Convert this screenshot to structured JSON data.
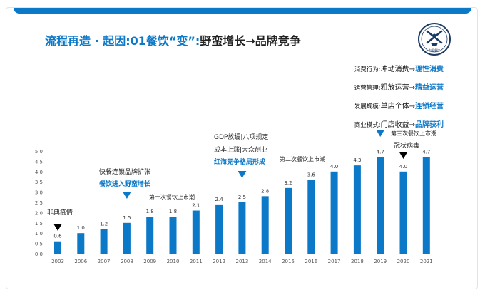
{
  "header": {
    "title_blue": "流程再造 · 起因:01餐饮“变”:",
    "title_dark": "野蛮增长→品牌竞争",
    "logo_text": "中国餐饮"
  },
  "legend": [
    {
      "label": "消费行为:",
      "from": "冲动消费",
      "arrow": "→",
      "to": "理性消费"
    },
    {
      "label": "运营管理:",
      "from": "粗放运营",
      "arrow": "→",
      "to": "精益运营"
    },
    {
      "label": "发展规模:",
      "from": "单店个体",
      "arrow": "→",
      "to": "连锁经营"
    },
    {
      "label": "商业模式:",
      "from": "门店收益",
      "arrow": "→",
      "to": "品牌获利"
    }
  ],
  "chart_data": {
    "type": "bar",
    "categories": [
      "2003",
      "2006",
      "2007",
      "2008",
      "2009",
      "2010",
      "2011",
      "2012",
      "2013",
      "2014",
      "2015",
      "2016",
      "2017",
      "2018",
      "2019",
      "2020",
      "2021"
    ],
    "values": [
      0.6,
      1.0,
      1.2,
      1.5,
      1.8,
      1.8,
      2.1,
      2.4,
      2.5,
      2.8,
      3.2,
      3.6,
      4.0,
      4.3,
      4.7,
      4.0,
      4.7
    ],
    "value_labels": [
      "0.6",
      "1.0",
      "1.2",
      "1.5",
      "1.8",
      "1.8",
      "2.1",
      "2.4",
      "2.5",
      "2.8",
      "3.2",
      "3.6",
      "4.0",
      "4.3",
      "4.7",
      "4.0",
      "4.7"
    ],
    "ylim": [
      0,
      5.0
    ],
    "yticks": [
      "0.0",
      "0.5",
      "1.0",
      "1.5",
      "2.0",
      "2.5",
      "3.0",
      "3.5",
      "4.0",
      "4.5",
      "5.0"
    ],
    "grid": false,
    "bar_color": "#0b78c8",
    "annotations": [
      {
        "lines": [
          "非典疫情"
        ],
        "marker": "black-down-triangle",
        "at": "2003"
      },
      {
        "lines": [
          "快餐连锁品牌扩张",
          "餐饮进入野蛮增长"
        ],
        "highlight": [
          false,
          true
        ],
        "marker": "blue-down-triangle",
        "at": "2008"
      },
      {
        "lines": [
          "第一次餐饮上市潮"
        ],
        "at": "2010"
      },
      {
        "lines": [
          "GDP放缓|八项规定",
          "成本上涨|大众创业",
          "红海竞争格局形成"
        ],
        "highlight": [
          false,
          false,
          true
        ],
        "marker": "blue-down-triangle",
        "at": "2013"
      },
      {
        "lines": [
          "第二次餐饮上市潮"
        ],
        "at": "2016"
      },
      {
        "lines": [
          "第三次餐饮上市潮"
        ],
        "marker": "blue-down-triangle",
        "at": "2019"
      },
      {
        "lines": [
          "冠状病毒"
        ],
        "marker": "black-down-triangle",
        "at": "2020"
      }
    ]
  }
}
